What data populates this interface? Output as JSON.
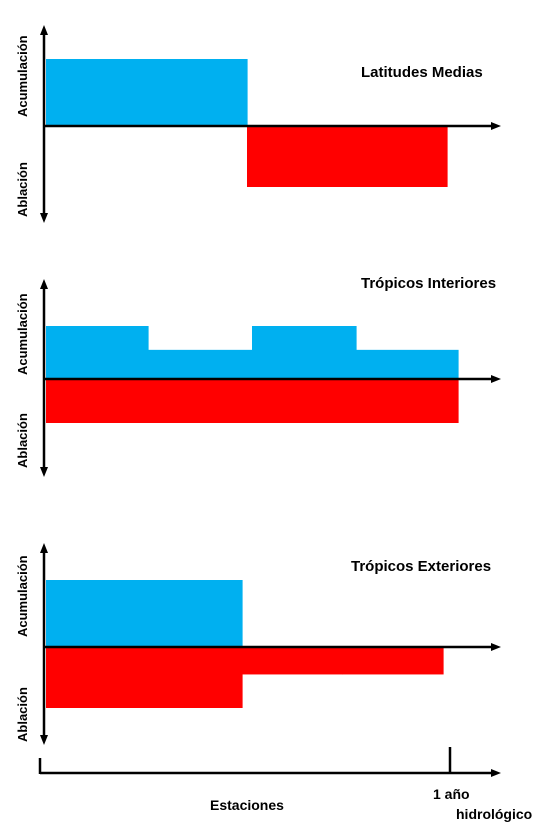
{
  "colors": {
    "accumulation": "#00b0f0",
    "ablation": "#ff0000",
    "axis": "#000000"
  },
  "axis_labels": {
    "accumulation": "Acumulación",
    "ablation": "Ablación"
  },
  "panels": [
    {
      "title": "Latitudes Medias",
      "accumulation": [
        1.0,
        1.0,
        0,
        0
      ],
      "ablation": [
        0,
        0,
        1.0,
        1.0
      ]
    },
    {
      "title": "Trópicos Interiores",
      "accumulation": [
        1.0,
        0.55,
        1.0,
        0.55
      ],
      "ablation": [
        1.0,
        1.0,
        1.0,
        1.0
      ]
    },
    {
      "title": "Trópicos Exteriores",
      "accumulation": [
        1.0,
        1.0,
        0,
        0
      ],
      "ablation": [
        1.0,
        1.0,
        0.45,
        0.45
      ]
    }
  ],
  "bottom_axis": {
    "label": "Estaciones",
    "end_label_line1": "1 año",
    "end_label_line2": "hidrológico"
  }
}
